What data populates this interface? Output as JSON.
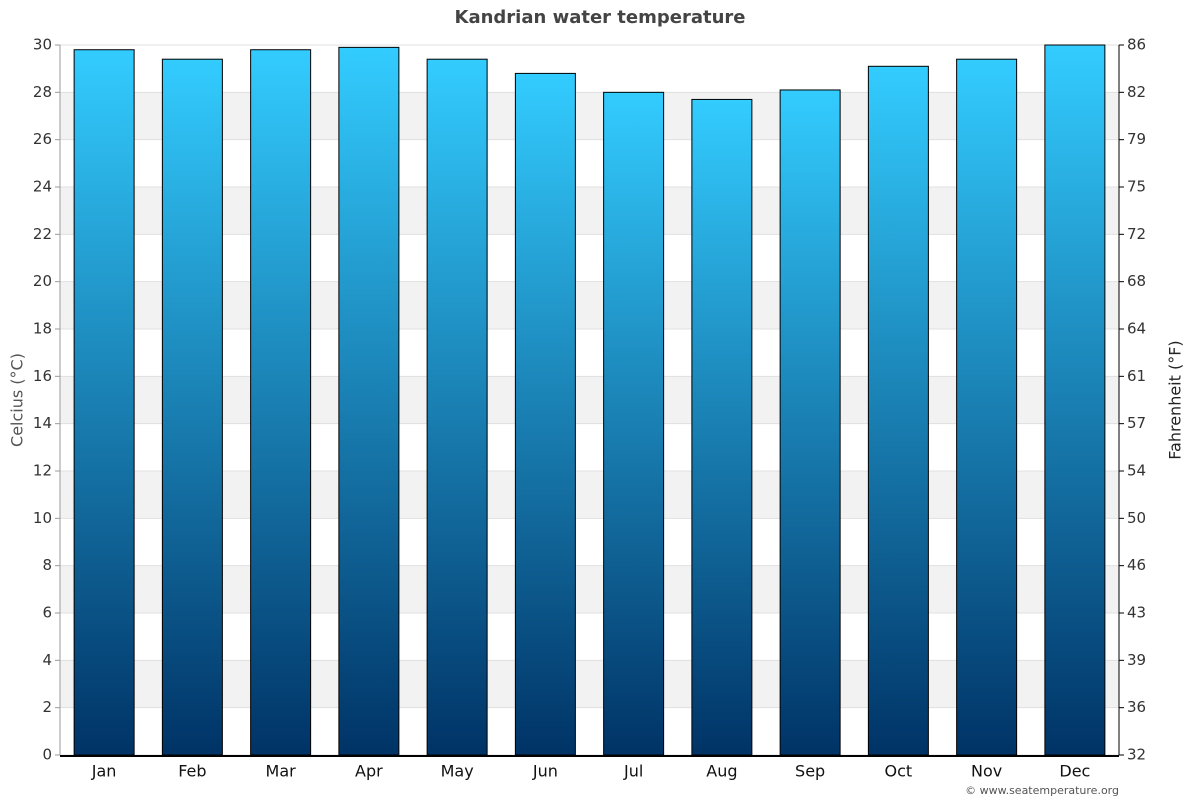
{
  "chart_data": {
    "type": "bar",
    "title": "Kandrian water temperature",
    "ylabel": "Celcius (°C)",
    "y2label": "Fahrenheit (°F)",
    "categories": [
      "Jan",
      "Feb",
      "Mar",
      "Apr",
      "May",
      "Jun",
      "Jul",
      "Aug",
      "Sep",
      "Oct",
      "Nov",
      "Dec"
    ],
    "values": [
      29.8,
      29.4,
      29.8,
      29.9,
      29.4,
      28.8,
      28.0,
      27.7,
      28.1,
      29.1,
      29.4,
      30.0
    ],
    "gradient": [
      "#33ccff",
      "#003366"
    ],
    "ylim": [
      0,
      30
    ],
    "yticks": [
      0,
      2,
      4,
      6,
      8,
      10,
      12,
      14,
      16,
      18,
      20,
      22,
      24,
      26,
      28,
      30
    ],
    "y2lim": [
      32,
      86
    ],
    "y2ticks": [
      32,
      {
        "value": 35.6,
        "label": "36"
      },
      {
        "value": 39.2,
        "label": "39"
      },
      {
        "value": 42.8,
        "label": "43"
      },
      {
        "value": 46.4,
        "label": "46"
      },
      50,
      {
        "value": 53.6,
        "label": "54"
      },
      {
        "value": 57.2,
        "label": "57"
      },
      {
        "value": 60.8,
        "label": "61"
      },
      {
        "value": 64.4,
        "label": "64"
      },
      68,
      {
        "value": 71.6,
        "label": "72"
      },
      {
        "value": 75.2,
        "label": "75"
      },
      {
        "value": 78.8,
        "label": "79"
      },
      {
        "value": 82.4,
        "label": "82"
      },
      86
    ],
    "grid": true,
    "bands": true,
    "credit": "© www.seatemperature.org"
  }
}
